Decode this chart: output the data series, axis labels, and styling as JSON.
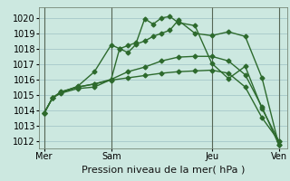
{
  "bg_color": "#cce8e0",
  "plot_bg_color": "#cce8e0",
  "grid_color": "#aacccc",
  "line_color": "#2d6a2d",
  "xlabel": "Pression niveau de la mer( hPa )",
  "ylim": [
    1011.5,
    1020.7
  ],
  "yticks": [
    1012,
    1013,
    1014,
    1015,
    1016,
    1017,
    1018,
    1019,
    1020
  ],
  "xtick_labels": [
    "Mer",
    "Sam",
    "Jeu",
    "Ven"
  ],
  "xtick_positions": [
    0,
    4,
    10,
    14
  ],
  "vlines": [
    0,
    4,
    10,
    14
  ],
  "series": [
    {
      "x": [
        0,
        0.5,
        1,
        2,
        3,
        4,
        4.5,
        5,
        5.5,
        6,
        6.5,
        7,
        7.5,
        8,
        9,
        10,
        11,
        12,
        13,
        14
      ],
      "y": [
        1013.8,
        1014.8,
        1015.1,
        1015.4,
        1015.5,
        1016.0,
        1018.0,
        1018.2,
        1018.4,
        1019.95,
        1019.6,
        1020.0,
        1020.1,
        1019.7,
        1019.5,
        1017.05,
        1016.05,
        1016.85,
        1014.1,
        1012.0
      ]
    },
    {
      "x": [
        0,
        0.5,
        1,
        2,
        3,
        4,
        4.5,
        5,
        5.5,
        6,
        6.5,
        7,
        7.5,
        8,
        9,
        10,
        11,
        12,
        13,
        14
      ],
      "y": [
        1013.8,
        1014.8,
        1015.15,
        1015.55,
        1016.5,
        1018.25,
        1018.0,
        1017.75,
        1018.3,
        1018.5,
        1018.8,
        1019.0,
        1019.2,
        1019.85,
        1019.0,
        1018.85,
        1019.1,
        1018.8,
        1016.1,
        1011.75
      ]
    },
    {
      "x": [
        0,
        0.5,
        1,
        2,
        3,
        4,
        5,
        6,
        7,
        8,
        9,
        10,
        11,
        12,
        13,
        14
      ],
      "y": [
        1013.8,
        1014.8,
        1015.2,
        1015.5,
        1015.7,
        1016.0,
        1016.5,
        1016.8,
        1017.2,
        1017.45,
        1017.5,
        1017.5,
        1017.2,
        1016.3,
        1014.2,
        1011.75
      ]
    },
    {
      "x": [
        0,
        0.5,
        1,
        2,
        3,
        4,
        5,
        6,
        7,
        8,
        9,
        10,
        11,
        12,
        13,
        14
      ],
      "y": [
        1013.8,
        1014.8,
        1015.15,
        1015.5,
        1015.7,
        1015.95,
        1016.1,
        1016.25,
        1016.4,
        1016.5,
        1016.55,
        1016.6,
        1016.4,
        1015.5,
        1013.5,
        1012.0
      ]
    }
  ],
  "marker_size": 2.5,
  "line_width": 1.0,
  "xlabel_fontsize": 8,
  "tick_fontsize": 7
}
